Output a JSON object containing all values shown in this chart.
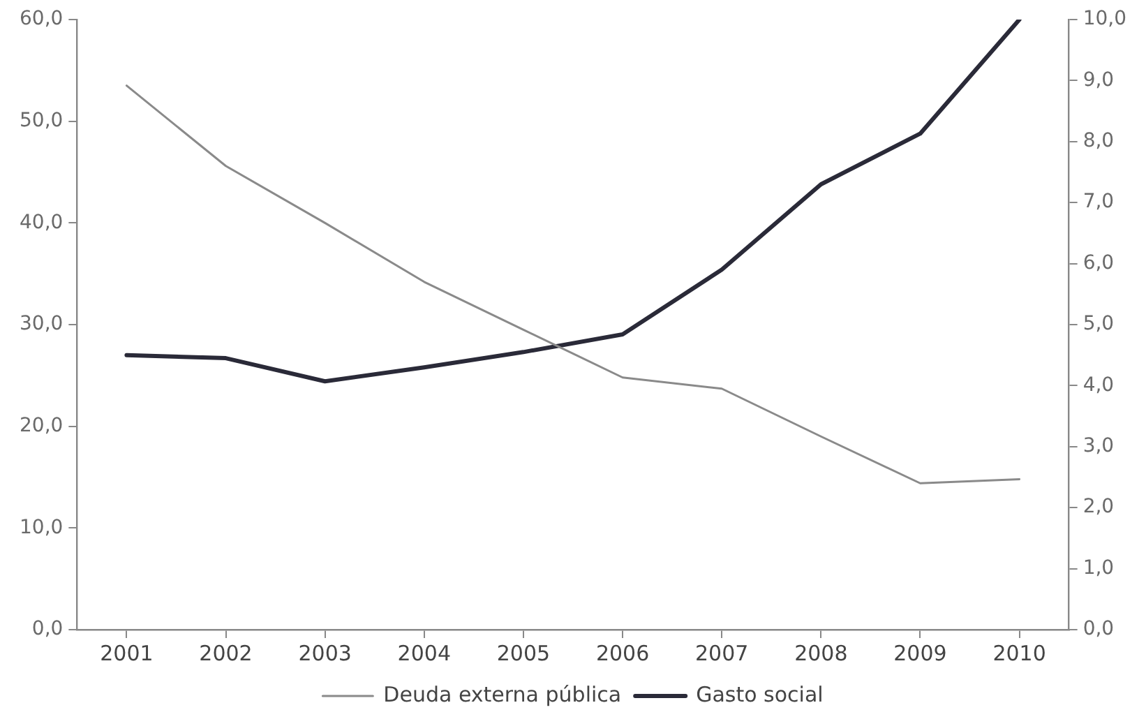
{
  "chart_data": {
    "type": "line",
    "categories": [
      "2001",
      "2002",
      "2003",
      "2004",
      "2005",
      "2006",
      "2007",
      "2008",
      "2009",
      "2010"
    ],
    "series": [
      {
        "name": "Deuda externa pública",
        "color": "#8a8a8a",
        "values": [
          53.5,
          45.6,
          40.0,
          34.2,
          29.5,
          24.8,
          23.7,
          19.0,
          14.4,
          14.8
        ]
      },
      {
        "name": "Gasto social",
        "color": "#2a2a38",
        "axis": "y2",
        "values": [
          4.5,
          4.45,
          4.07,
          4.3,
          4.55,
          4.84,
          5.9,
          7.3,
          8.13,
          10.0
        ]
      }
    ],
    "ylim": [
      0,
      60
    ],
    "yticks": [
      {
        "value": 0,
        "label": "0,0"
      },
      {
        "value": 10,
        "label": "10,0"
      },
      {
        "value": 20,
        "label": "20,0"
      },
      {
        "value": 30,
        "label": "30,0"
      },
      {
        "value": 40,
        "label": "40,0"
      },
      {
        "value": 50,
        "label": "50,0"
      },
      {
        "value": 60,
        "label": "60,0"
      }
    ],
    "y2lim": [
      0,
      10
    ],
    "y2ticks": [
      {
        "value": 0,
        "label": "0,0"
      },
      {
        "value": 1,
        "label": "1,0"
      },
      {
        "value": 2,
        "label": "2,0"
      },
      {
        "value": 3,
        "label": "3,0"
      },
      {
        "value": 4,
        "label": "4,0"
      },
      {
        "value": 5,
        "label": "5,0"
      },
      {
        "value": 6,
        "label": "6,0"
      },
      {
        "value": 7,
        "label": "7,0"
      },
      {
        "value": 8,
        "label": "8,0"
      },
      {
        "value": 9,
        "label": "9,0"
      },
      {
        "value": 10,
        "label": "10,0"
      }
    ],
    "grid": false,
    "legend": "bottom",
    "marker": "none",
    "line_style": "solid"
  }
}
